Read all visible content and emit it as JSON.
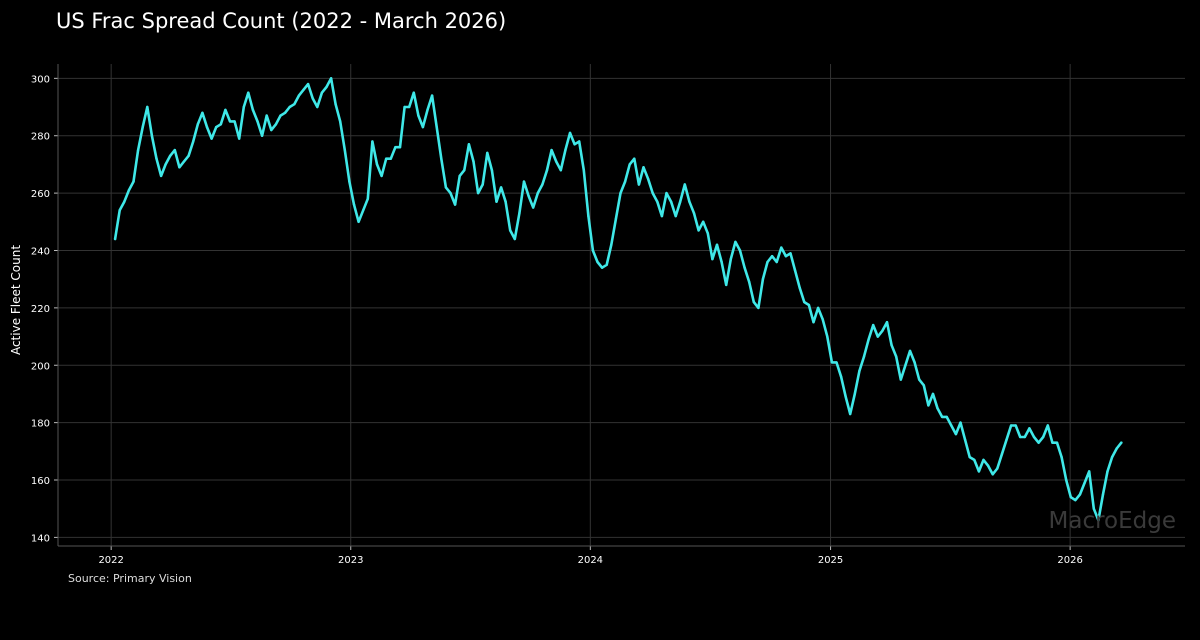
{
  "title": "US Frac Spread Count (2022 - March 2026)",
  "source": "Source: Primary Vision",
  "watermark": "MacroEdge",
  "colors": {
    "background": "#000000",
    "line": "#3fe8e8",
    "grid": "#333333",
    "text": "#ffffff"
  },
  "chart_data": {
    "type": "line",
    "title": "US Frac Spread Count (2022 - March 2026)",
    "xlabel": "",
    "ylabel": "Active Fleet Count",
    "xlim": [
      "2021-10-12",
      "2026-06-25"
    ],
    "ylim": [
      137,
      305
    ],
    "x_ticks": [
      "2022",
      "2023",
      "2024",
      "2025",
      "2026"
    ],
    "y_ticks": [
      140,
      160,
      180,
      200,
      220,
      240,
      260,
      280,
      300
    ],
    "grid": true,
    "legend": "none",
    "series": [
      {
        "x": [
          "2022-01-07",
          "2022-01-14",
          "2022-01-21",
          "2022-01-28",
          "2022-02-04",
          "2022-02-11",
          "2022-02-18",
          "2022-02-25",
          "2022-03-04",
          "2022-03-11",
          "2022-03-18",
          "2022-03-25",
          "2022-04-01",
          "2022-04-08",
          "2022-04-15",
          "2022-04-22",
          "2022-04-29",
          "2022-05-06",
          "2022-05-13",
          "2022-05-20",
          "2022-05-27",
          "2022-06-03",
          "2022-06-10",
          "2022-06-17",
          "2022-06-24",
          "2022-07-01",
          "2022-07-08",
          "2022-07-15",
          "2022-07-22",
          "2022-07-29",
          "2022-08-05",
          "2022-08-12",
          "2022-08-19",
          "2022-08-26",
          "2022-09-02",
          "2022-09-09",
          "2022-09-16",
          "2022-09-23",
          "2022-09-30",
          "2022-10-07",
          "2022-10-14",
          "2022-10-21",
          "2022-10-28",
          "2022-11-04",
          "2022-11-11",
          "2022-11-18",
          "2022-11-25",
          "2022-12-02",
          "2022-12-09",
          "2022-12-16",
          "2022-12-23",
          "2022-12-30",
          "2023-01-06",
          "2023-01-13",
          "2023-01-20",
          "2023-01-27",
          "2023-02-03",
          "2023-02-10",
          "2023-02-17",
          "2023-02-24",
          "2023-03-03",
          "2023-03-10",
          "2023-03-17",
          "2023-03-24",
          "2023-03-31",
          "2023-04-07",
          "2023-04-14",
          "2023-04-21",
          "2023-04-28",
          "2023-05-05",
          "2023-05-12",
          "2023-05-19",
          "2023-05-26",
          "2023-06-02",
          "2023-06-09",
          "2023-06-16",
          "2023-06-23",
          "2023-06-30",
          "2023-07-07",
          "2023-07-14",
          "2023-07-21",
          "2023-07-28",
          "2023-08-04",
          "2023-08-11",
          "2023-08-18",
          "2023-08-25",
          "2023-09-01",
          "2023-09-08",
          "2023-09-15",
          "2023-09-22",
          "2023-09-29",
          "2023-10-06",
          "2023-10-13",
          "2023-10-20",
          "2023-10-27",
          "2023-11-03",
          "2023-11-10",
          "2023-11-17",
          "2023-11-24",
          "2023-12-01",
          "2023-12-08",
          "2023-12-15",
          "2023-12-22",
          "2023-12-29",
          "2024-01-05",
          "2024-01-12",
          "2024-01-19",
          "2024-01-26",
          "2024-02-02",
          "2024-02-09",
          "2024-02-16",
          "2024-02-23",
          "2024-03-01",
          "2024-03-08",
          "2024-03-15",
          "2024-03-22",
          "2024-03-29",
          "2024-04-05",
          "2024-04-12",
          "2024-04-19",
          "2024-04-26",
          "2024-05-03",
          "2024-05-10",
          "2024-05-17",
          "2024-05-24",
          "2024-05-31",
          "2024-06-07",
          "2024-06-14",
          "2024-06-21",
          "2024-06-28",
          "2024-07-05",
          "2024-07-12",
          "2024-07-19",
          "2024-07-26",
          "2024-08-02",
          "2024-08-09",
          "2024-08-16",
          "2024-08-23",
          "2024-08-30",
          "2024-09-06",
          "2024-09-13",
          "2024-09-20",
          "2024-09-27",
          "2024-10-04",
          "2024-10-11",
          "2024-10-18",
          "2024-10-25",
          "2024-11-01",
          "2024-11-08",
          "2024-11-15",
          "2024-11-22",
          "2024-11-29",
          "2024-12-06",
          "2024-12-13",
          "2024-12-20",
          "2024-12-27",
          "2025-01-03",
          "2025-01-10",
          "2025-01-17",
          "2025-01-24",
          "2025-01-31",
          "2025-02-07",
          "2025-02-14",
          "2025-02-21",
          "2025-02-28",
          "2025-03-07",
          "2025-03-14",
          "2025-03-21",
          "2025-03-28",
          "2025-04-04",
          "2025-04-11",
          "2025-04-18",
          "2025-04-25",
          "2025-05-02",
          "2025-05-09",
          "2025-05-16",
          "2025-05-23",
          "2025-05-30",
          "2025-06-06",
          "2025-06-13",
          "2025-06-20",
          "2025-06-27",
          "2025-07-04",
          "2025-07-11",
          "2025-07-18",
          "2025-07-25",
          "2025-08-01",
          "2025-08-08",
          "2025-08-15",
          "2025-08-22",
          "2025-08-29",
          "2025-09-05",
          "2025-09-12",
          "2025-09-19",
          "2025-09-26",
          "2025-10-03",
          "2025-10-10",
          "2025-10-17",
          "2025-10-24",
          "2025-10-31",
          "2025-11-07",
          "2025-11-14",
          "2025-11-21",
          "2025-11-28",
          "2025-12-05",
          "2025-12-12",
          "2025-12-19",
          "2025-12-26",
          "2026-01-02",
          "2026-01-09",
          "2026-01-16",
          "2026-01-23",
          "2026-01-30",
          "2026-02-06",
          "2026-02-13",
          "2026-02-20",
          "2026-02-27",
          "2026-03-06",
          "2026-03-13",
          "2026-03-20"
        ],
        "values": [
          244,
          254,
          257,
          261,
          264,
          275,
          283,
          290,
          280,
          272,
          266,
          270,
          273,
          275,
          269,
          271,
          273,
          278,
          284,
          288,
          283,
          279,
          283,
          284,
          289,
          285,
          285,
          279,
          290,
          295,
          289,
          285,
          280,
          287,
          282,
          284,
          287,
          288,
          290,
          291,
          294,
          296,
          298,
          293,
          290,
          295,
          297,
          300,
          291,
          285,
          275,
          264,
          256,
          250,
          254,
          258,
          278,
          270,
          266,
          272,
          272,
          276,
          276,
          290,
          290,
          295,
          287,
          283,
          289,
          294,
          283,
          272,
          262,
          260,
          256,
          266,
          268,
          277,
          271,
          260,
          263,
          274,
          268,
          257,
          262,
          257,
          247,
          244,
          253,
          264,
          259,
          255,
          260,
          263,
          268,
          275,
          271,
          268,
          275,
          281,
          277,
          278,
          268,
          252,
          240,
          236,
          234,
          235,
          242,
          251,
          260,
          264,
          270,
          272,
          263,
          269,
          265,
          260,
          257,
          252,
          260,
          257,
          252,
          257,
          263,
          257,
          253,
          247,
          250,
          246,
          237,
          242,
          236,
          228,
          237,
          243,
          240,
          234,
          229,
          222,
          220,
          230,
          236,
          238,
          236,
          241,
          238,
          239,
          233,
          227,
          222,
          221,
          215,
          220,
          216,
          210,
          201,
          201,
          196,
          189,
          183,
          190,
          198,
          203,
          209,
          214,
          210,
          212,
          215,
          207,
          203,
          195,
          200,
          205,
          201,
          195,
          193,
          186,
          190,
          185,
          182,
          182,
          179,
          176,
          180,
          174,
          168,
          167,
          163,
          167,
          165,
          162,
          164,
          169,
          174,
          179,
          179,
          175,
          175,
          178,
          175,
          173,
          175,
          179,
          173,
          173,
          168,
          160,
          154,
          153,
          155,
          159,
          163,
          150,
          146,
          155,
          163,
          168,
          171,
          173
        ]
      }
    ]
  }
}
